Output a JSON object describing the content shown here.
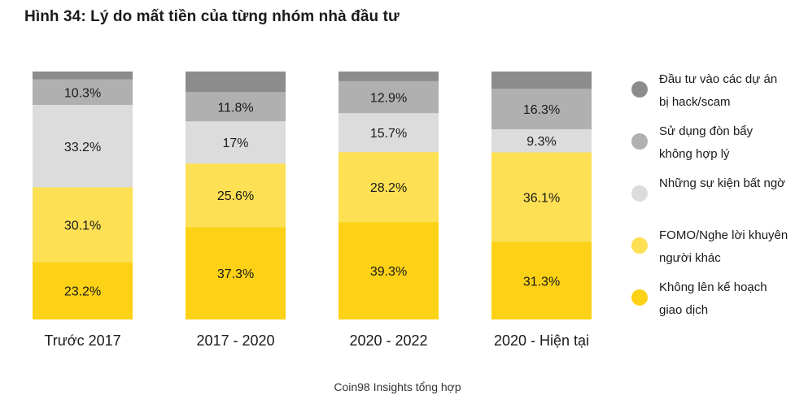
{
  "title": "Hình 34: Lý do mất tiền của từng nhóm nhà đầu tư",
  "source": "Coin98 Insights tổng hợp",
  "chart_data": {
    "type": "bar",
    "stacked": true,
    "normalized_to": 100,
    "categories": [
      "Trước 2017",
      "2017 - 2020",
      "2020 - 2022",
      "2020 - Hiện tại"
    ],
    "series": [
      {
        "name": "Không lên kế hoạch giao dịch",
        "color": "#FCD116",
        "values": [
          23.2,
          37.3,
          39.3,
          31.3
        ],
        "labels": [
          "23.2%",
          "37.3%",
          "39.3%",
          "31.3%"
        ]
      },
      {
        "name": "FOMO/Nghe lời khuyên người khác",
        "color": "#FDE054",
        "values": [
          30.1,
          25.6,
          28.2,
          36.1
        ],
        "labels": [
          "30.1%",
          "25.6%",
          "28.2%",
          "36.1%"
        ]
      },
      {
        "name": "Những sự kiện bất ngờ",
        "color": "#DCDCDC",
        "values": [
          33.2,
          17,
          15.7,
          9.3
        ],
        "labels": [
          "33.2%",
          "17%",
          "15.7%",
          "9.3%"
        ]
      },
      {
        "name": "Sử dụng đòn bẩy không hợp lý",
        "color": "#B0B0B0",
        "values": [
          10.3,
          11.8,
          12.9,
          16.3
        ],
        "labels": [
          "10.3%",
          "11.8%",
          "12.9%",
          "16.3%"
        ]
      },
      {
        "name": "Đầu tư vào các dự án bị hack/scam",
        "color": "#8C8C8C",
        "values": [
          3.2,
          8.3,
          3.9,
          7.0
        ],
        "labels": [
          "",
          "",
          "",
          ""
        ]
      }
    ],
    "legend_order": [
      4,
      3,
      2,
      1,
      0
    ],
    "legend_placement": "right",
    "grid": false
  }
}
